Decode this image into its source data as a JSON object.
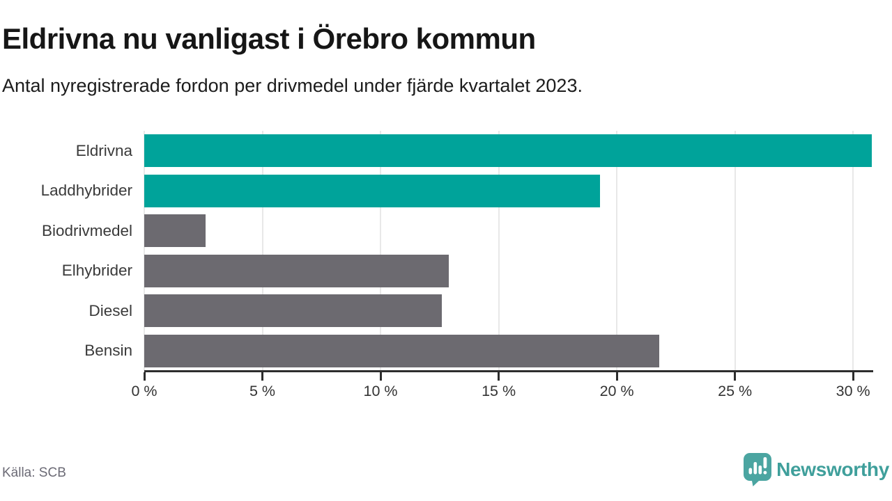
{
  "header": {
    "title": "Eldrivna nu vanligast i Örebro kommun",
    "subtitle": "Antal nyregistrerade fordon per drivmedel under fjärde kvartalet 2023."
  },
  "chart_data": {
    "type": "bar",
    "orientation": "horizontal",
    "title": "Eldrivna nu vanligast i Örebro kommun",
    "subtitle": "Antal nyregistrerade fordon per drivmedel under fjärde kvartalet 2023.",
    "categories": [
      "Eldrivna",
      "Laddhybrider",
      "Biodrivmedel",
      "Elhybrider",
      "Diesel",
      "Bensin"
    ],
    "values": [
      30.8,
      19.3,
      2.6,
      12.9,
      12.6,
      21.8
    ],
    "unit": "%",
    "xlim": [
      0,
      30.85
    ],
    "xticks": [
      0,
      5,
      10,
      15,
      20,
      25,
      30
    ],
    "xtick_labels": [
      "0 %",
      "5 %",
      "10 %",
      "15 %",
      "20 %",
      "25 %",
      "30 %"
    ],
    "grid": "vertical-gridlines-on",
    "legend": "none",
    "bar_colors": [
      "#00a39a",
      "#00a39a",
      "#6c6a70",
      "#6c6a70",
      "#6c6a70",
      "#6c6a70"
    ],
    "highlight_color": "#00a39a",
    "base_color": "#6c6a70",
    "gridline_color": "#e8e8e8",
    "axis_color": "#2d2d2d"
  },
  "footer": {
    "source": "Källa: SCB",
    "brand": "Newsworthy",
    "brand_color": "#3f9f9b",
    "brand_icon": "speech-bubble-bar-chart-exclamation",
    "brand_icon_color": "#4ba5a1"
  }
}
